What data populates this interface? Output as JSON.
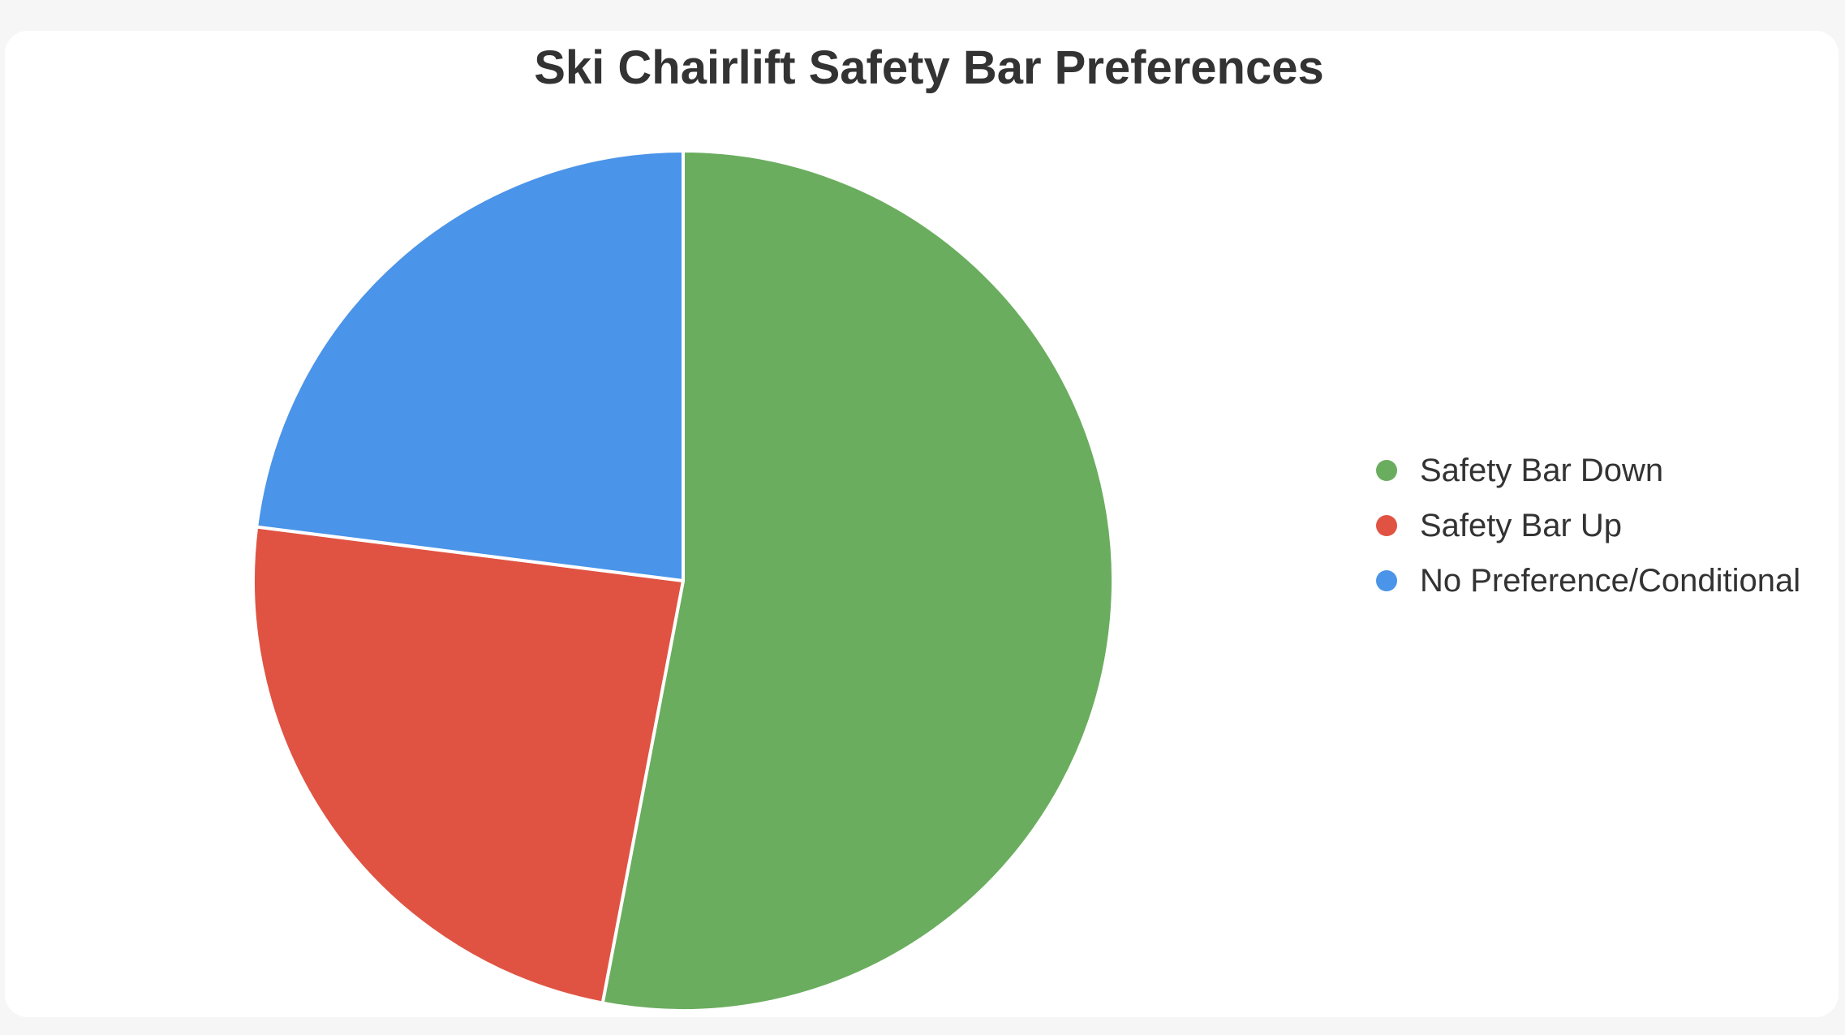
{
  "chart_data": {
    "type": "pie",
    "title": "Ski Chairlift Safety Bar Preferences",
    "categories": [
      "Safety Bar Down",
      "Safety Bar Up",
      "No Preference/Conditional"
    ],
    "values": [
      53,
      24,
      23
    ],
    "colors": [
      "#6aad5e",
      "#e05343",
      "#4a94e9"
    ],
    "start_angle_deg": 0,
    "direction": "clockwise",
    "legend_position": "right"
  }
}
